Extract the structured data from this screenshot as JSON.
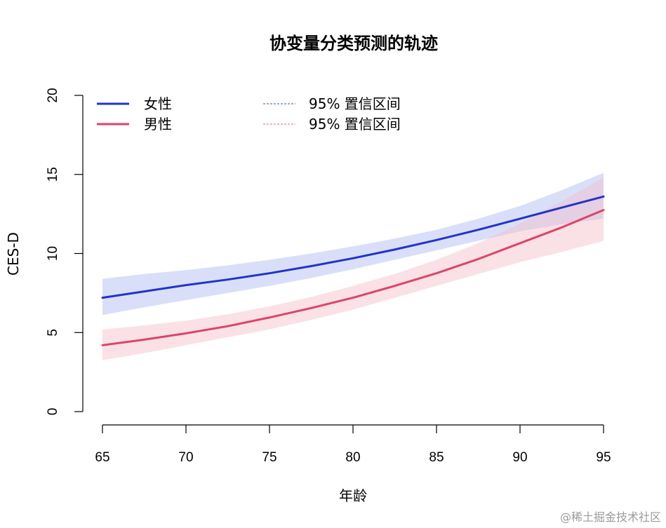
{
  "chart_data": {
    "type": "line",
    "title": "协变量分类预测的轨迹",
    "xlabel": "年龄",
    "ylabel": "CES-D",
    "xlim": [
      65,
      95
    ],
    "ylim": [
      0,
      20
    ],
    "xticks": [
      65,
      70,
      75,
      80,
      85,
      90,
      95
    ],
    "yticks": [
      0,
      5,
      10,
      15,
      20
    ],
    "x": [
      65,
      67.5,
      70,
      72.5,
      75,
      77.5,
      80,
      82.5,
      85,
      87.5,
      90,
      92.5,
      95
    ],
    "grid": false,
    "legend_position": "top-left",
    "series": [
      {
        "name": "女性",
        "color": "#2233cc",
        "band_color": "#aab8f0",
        "values": [
          7.2,
          7.6,
          8.0,
          8.35,
          8.75,
          9.2,
          9.7,
          10.25,
          10.85,
          11.5,
          12.2,
          12.9,
          13.6
        ],
        "lower": [
          6.1,
          6.6,
          7.05,
          7.5,
          7.95,
          8.45,
          9.0,
          9.6,
          10.2,
          10.8,
          11.4,
          11.85,
          12.2
        ],
        "upper": [
          8.4,
          8.7,
          8.95,
          9.25,
          9.6,
          10.0,
          10.45,
          10.95,
          11.5,
          12.2,
          13.0,
          14.0,
          15.1
        ],
        "ci_name": "95% 置信区间"
      },
      {
        "name": "男性",
        "color": "#dd4466",
        "band_color": "#f4bcc8",
        "values": [
          4.2,
          4.55,
          4.95,
          5.4,
          5.95,
          6.55,
          7.2,
          7.95,
          8.75,
          9.65,
          10.65,
          11.65,
          12.75
        ],
        "lower": [
          3.25,
          3.7,
          4.2,
          4.7,
          5.2,
          5.8,
          6.45,
          7.2,
          7.95,
          8.7,
          9.45,
          10.1,
          10.8
        ],
        "upper": [
          5.2,
          5.45,
          5.75,
          6.15,
          6.65,
          7.25,
          7.95,
          8.7,
          9.6,
          10.65,
          11.9,
          13.3,
          14.8
        ],
        "ci_name": "95% 置信区间"
      }
    ]
  },
  "watermark": "@稀土掘金技术社区"
}
